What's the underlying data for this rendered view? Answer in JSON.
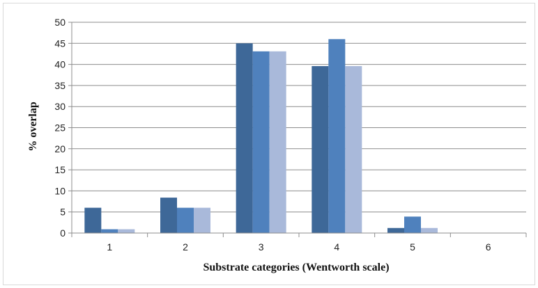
{
  "chart_data": {
    "type": "bar",
    "title": "",
    "xlabel": "Substrate categories (Wentworth scale)",
    "ylabel": "% overlap",
    "categories": [
      "1",
      "2",
      "3",
      "4",
      "5",
      "6"
    ],
    "ylim": [
      0,
      50
    ],
    "yticks": [
      "0",
      "5",
      "10",
      "15",
      "20",
      "25",
      "30",
      "35",
      "40",
      "45",
      "50"
    ],
    "grid": true,
    "legend": "none",
    "series": [
      {
        "values": [
          6.0,
          8.4,
          45.0,
          39.6,
          1.2,
          0
        ],
        "color": "#3e6898"
      },
      {
        "values": [
          0.9,
          6.0,
          43.1,
          46.0,
          3.9,
          0
        ],
        "color": "#4f81bd"
      },
      {
        "values": [
          0.9,
          6.0,
          43.1,
          39.6,
          1.2,
          0
        ],
        "color": "#a9b9da"
      }
    ]
  }
}
